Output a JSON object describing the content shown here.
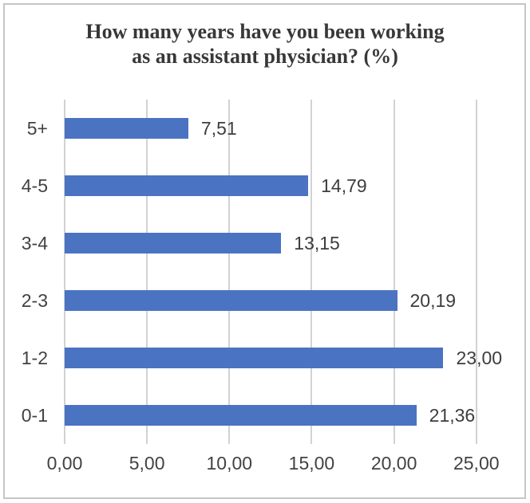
{
  "chart_data": {
    "type": "bar",
    "orientation": "horizontal",
    "title": "How many years have you been working as an assistant physician? (%)",
    "title_lines": [
      "How many years have you been working",
      "as an assistant physician? (%)"
    ],
    "categories": [
      "5+",
      "4-5",
      "3-4",
      "2-3",
      "1-2",
      "0-1"
    ],
    "values": [
      7.51,
      14.79,
      13.15,
      20.19,
      23.0,
      21.36
    ],
    "value_labels": [
      "7,51",
      "14,79",
      "13,15",
      "20,19",
      "23,00",
      "21,36"
    ],
    "x_ticks": [
      {
        "value": 0,
        "label": "0,00"
      },
      {
        "value": 5,
        "label": "5,00"
      },
      {
        "value": 10,
        "label": "10,00"
      },
      {
        "value": 15,
        "label": "15,00"
      },
      {
        "value": 20,
        "label": "20,00"
      },
      {
        "value": 25,
        "label": "25,00"
      }
    ],
    "xlim": [
      0,
      25
    ],
    "grid": true,
    "legend": false,
    "xlabel": "",
    "ylabel": "",
    "colors": {
      "bar": "#4a73c2",
      "gridline": "#d2d2d2",
      "label_text": "#424242",
      "title_text": "#383838",
      "frame_border": "#c6c6c6",
      "background": "#ffffff"
    }
  }
}
